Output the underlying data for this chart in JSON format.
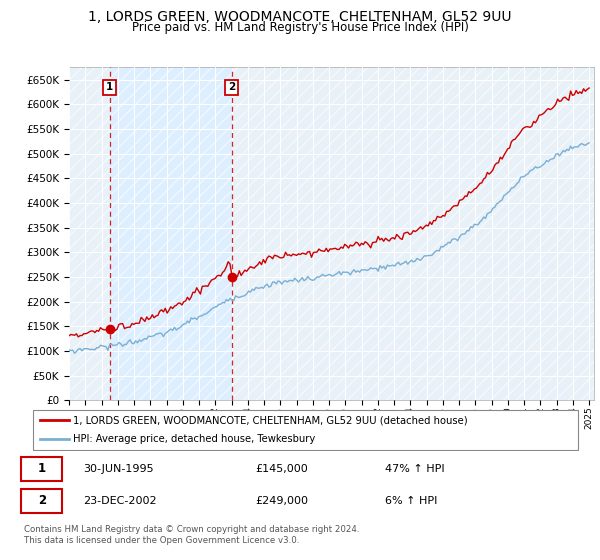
{
  "title": "1, LORDS GREEN, WOODMANCOTE, CHELTENHAM, GL52 9UU",
  "subtitle": "Price paid vs. HM Land Registry's House Price Index (HPI)",
  "ylabel_ticks": [
    0,
    50000,
    100000,
    150000,
    200000,
    250000,
    300000,
    350000,
    400000,
    450000,
    500000,
    550000,
    600000,
    650000
  ],
  "ylim": [
    0,
    675000
  ],
  "xlim_start": 1993.0,
  "xlim_end": 2025.3,
  "sale1_date": 1995.5,
  "sale1_price": 145000,
  "sale2_date": 2003.0,
  "sale2_price": 249000,
  "legend_line1": "1, LORDS GREEN, WOODMANCOTE, CHELTENHAM, GL52 9UU (detached house)",
  "legend_line2": "HPI: Average price, detached house, Tewkesbury",
  "footnote1": "Contains HM Land Registry data © Crown copyright and database right 2024.",
  "footnote2": "This data is licensed under the Open Government Licence v3.0.",
  "red_color": "#cc0000",
  "blue_color": "#7aafd4",
  "shade_color": "#ddeeff",
  "bg_color": "#e8f0f8",
  "grid_color": "#ffffff"
}
